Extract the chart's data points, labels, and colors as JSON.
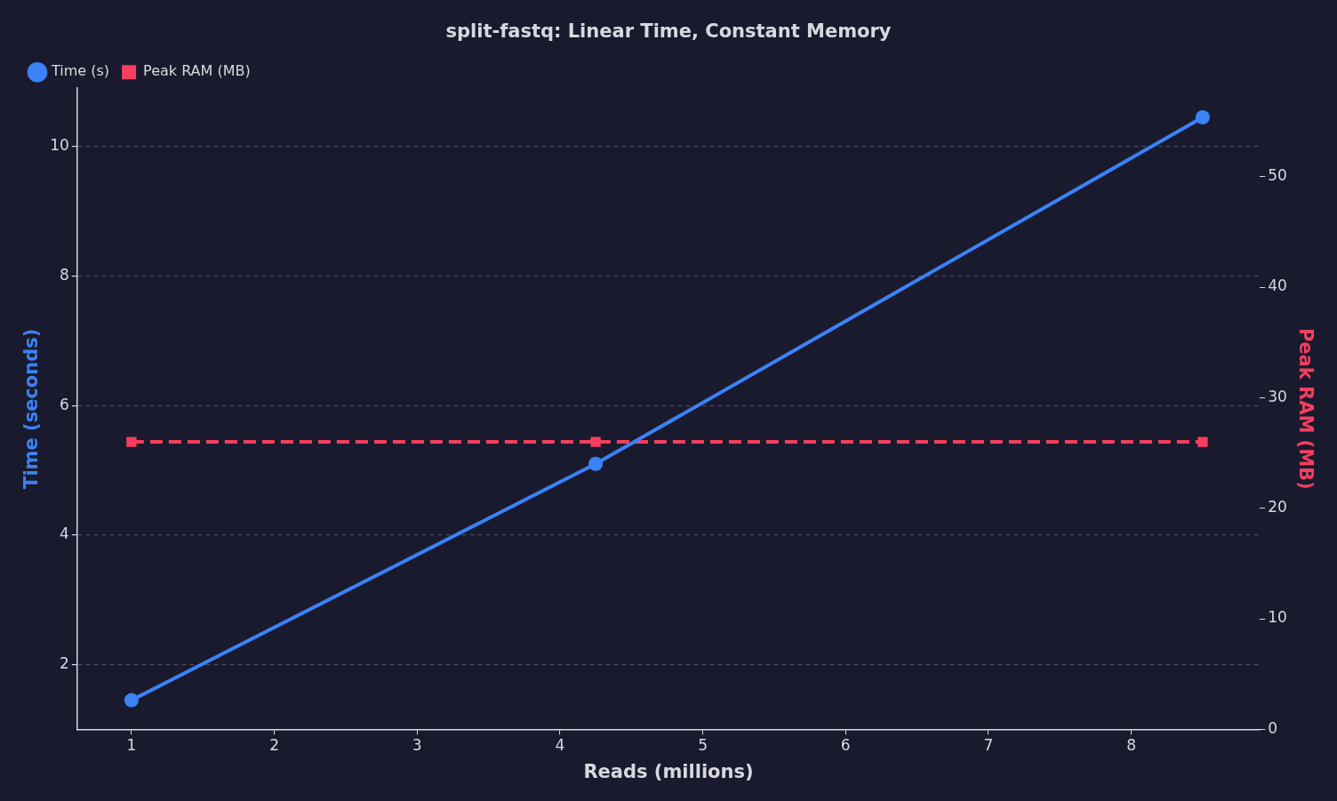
{
  "chart_data": {
    "type": "line",
    "title": "split-fastq: Linear Time, Constant Memory",
    "xlabel": "Reads (millions)",
    "ylabel": "Time (seconds)",
    "y2label": "Peak RAM (MB)",
    "xlim": [
      0.62,
      8.9
    ],
    "xticks": [
      1,
      2,
      3,
      4,
      5,
      6,
      7,
      8
    ],
    "ylim": [
      1.0,
      10.9
    ],
    "yticks": [
      2,
      4,
      6,
      8,
      10
    ],
    "y2lim": [
      0,
      58
    ],
    "y2ticks": [
      0,
      10,
      20,
      30,
      40,
      50
    ],
    "grid": "y",
    "legend": "top left",
    "series": [
      {
        "name": "Time (s)",
        "color": "#3b82f6",
        "x": [
          1,
          4.25,
          8.5
        ],
        "values": [
          1.45,
          5.1,
          10.45
        ],
        "marker": "circle",
        "line_style": "solid"
      },
      {
        "name": "Peak RAM (MB)",
        "color": "#f43f5e",
        "x": [
          1,
          4.25,
          8.5
        ],
        "values": [
          26,
          26,
          26
        ],
        "marker": "square",
        "line_style": "dashed",
        "axis": "y2"
      }
    ]
  }
}
